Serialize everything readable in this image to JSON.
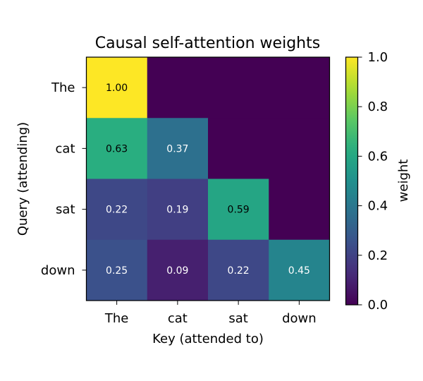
{
  "chart_data": {
    "type": "heatmap",
    "title": "Causal self-attention weights",
    "xlabel": "Key (attended to)",
    "ylabel": "Query (attending)",
    "x_categories": [
      "The",
      "cat",
      "sat",
      "down"
    ],
    "y_categories": [
      "The",
      "cat",
      "sat",
      "down"
    ],
    "values": [
      [
        1.0,
        0.0,
        0.0,
        0.0
      ],
      [
        0.63,
        0.37,
        0.0,
        0.0
      ],
      [
        0.22,
        0.19,
        0.59,
        0.0
      ],
      [
        0.25,
        0.09,
        0.22,
        0.45
      ]
    ],
    "cell_labels": [
      [
        "1.00",
        null,
        null,
        null
      ],
      [
        "0.63",
        "0.37",
        null,
        null
      ],
      [
        "0.22",
        "0.19",
        "0.59",
        null
      ],
      [
        "0.25",
        "0.09",
        "0.22",
        "0.45"
      ]
    ],
    "colormap": "viridis",
    "vmin": 0.0,
    "vmax": 1.0,
    "colorbar": {
      "label": "weight",
      "ticks": [
        0.0,
        0.2,
        0.4,
        0.6,
        0.8,
        1.0
      ],
      "tick_labels": [
        "0.0",
        "0.2",
        "0.4",
        "0.6",
        "0.8",
        "1.0"
      ]
    },
    "grid": false
  }
}
